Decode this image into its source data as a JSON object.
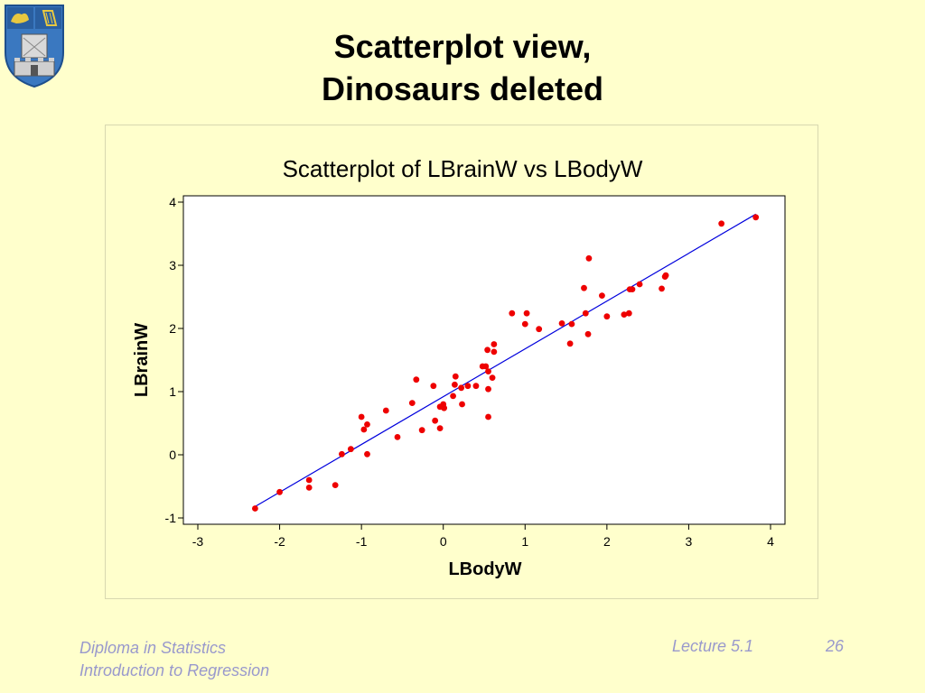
{
  "slide": {
    "title_line1": "Scatterplot view,",
    "title_line2": "Dinosaurs deleted"
  },
  "footer": {
    "course": "Diploma in Statistics",
    "module": "Introduction to Regression",
    "lecture": "Lecture 5.1",
    "page": "26"
  },
  "colors": {
    "background": "#ffffcc",
    "points": "#ee0000",
    "fit_line": "#0000dd"
  },
  "chart_data": {
    "type": "scatter",
    "title": "Scatterplot of LBrainW vs LBodyW",
    "xlabel": "LBodyW",
    "ylabel": "LBrainW",
    "xlim": [
      -3,
      4
    ],
    "ylim": [
      -1,
      4
    ],
    "xticks": [
      "-3",
      "-2",
      "-1",
      "0",
      "1",
      "2",
      "3",
      "4"
    ],
    "yticks": [
      "-1",
      "0",
      "1",
      "2",
      "3",
      "4"
    ],
    "grid": false,
    "points": [
      [
        -2.3,
        -0.85
      ],
      [
        -2.0,
        -0.59
      ],
      [
        -1.64,
        -0.4
      ],
      [
        -1.64,
        -0.52
      ],
      [
        -1.32,
        -0.48
      ],
      [
        -1.24,
        0.01
      ],
      [
        -1.13,
        0.09
      ],
      [
        -1.0,
        0.6
      ],
      [
        -0.97,
        0.4
      ],
      [
        -0.93,
        0.48
      ],
      [
        -0.93,
        0.01
      ],
      [
        -0.7,
        0.7
      ],
      [
        -0.56,
        0.28
      ],
      [
        -0.38,
        0.82
      ],
      [
        -0.33,
        1.19
      ],
      [
        -0.26,
        0.39
      ],
      [
        -0.12,
        1.09
      ],
      [
        -0.1,
        0.54
      ],
      [
        -0.04,
        0.42
      ],
      [
        -0.04,
        0.76
      ],
      [
        0.0,
        0.8
      ],
      [
        0.01,
        0.74
      ],
      [
        0.12,
        0.93
      ],
      [
        0.14,
        1.11
      ],
      [
        0.15,
        1.24
      ],
      [
        0.22,
        1.06
      ],
      [
        0.23,
        0.8
      ],
      [
        0.3,
        1.09
      ],
      [
        0.4,
        1.09
      ],
      [
        0.48,
        1.4
      ],
      [
        0.52,
        1.4
      ],
      [
        0.54,
        1.66
      ],
      [
        0.55,
        1.32
      ],
      [
        0.55,
        1.04
      ],
      [
        0.55,
        0.6
      ],
      [
        0.6,
        1.22
      ],
      [
        0.62,
        1.75
      ],
      [
        0.62,
        1.63
      ],
      [
        0.84,
        2.24
      ],
      [
        1.0,
        2.07
      ],
      [
        1.02,
        2.24
      ],
      [
        1.17,
        1.99
      ],
      [
        1.45,
        2.08
      ],
      [
        1.55,
        1.76
      ],
      [
        1.57,
        2.07
      ],
      [
        1.72,
        2.64
      ],
      [
        1.74,
        2.24
      ],
      [
        1.77,
        1.91
      ],
      [
        1.78,
        3.11
      ],
      [
        1.94,
        2.52
      ],
      [
        2.0,
        2.19
      ],
      [
        2.21,
        2.22
      ],
      [
        2.27,
        2.24
      ],
      [
        2.28,
        2.62
      ],
      [
        2.31,
        2.62
      ],
      [
        2.4,
        2.7
      ],
      [
        2.67,
        2.63
      ],
      [
        2.71,
        2.82
      ],
      [
        2.72,
        2.84
      ],
      [
        3.4,
        3.66
      ],
      [
        3.82,
        3.76
      ]
    ],
    "fit_line": {
      "x": [
        -2.3,
        3.82
      ],
      "y": [
        -0.82,
        3.81
      ]
    }
  }
}
